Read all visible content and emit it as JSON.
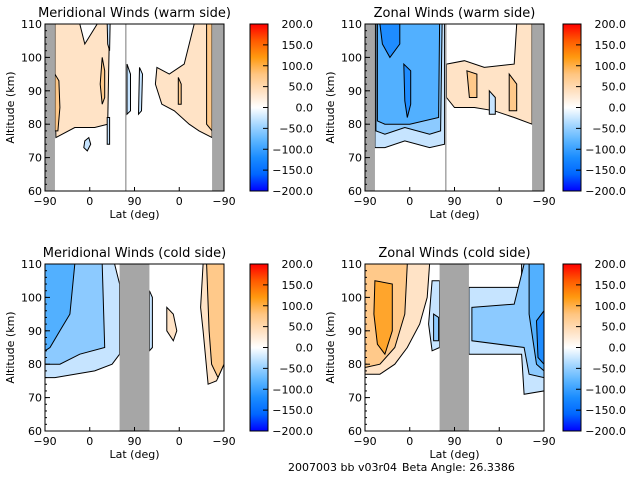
{
  "footer": {
    "run_id": "2007003 bb v03r04",
    "beta_label": "Beta Angle: 26.3386"
  },
  "colorbar": {
    "range": [
      -200,
      200
    ],
    "tick_values": [
      200,
      150,
      100,
      50,
      0,
      -50,
      -100,
      -150,
      -200
    ],
    "tick_labels": [
      "200.0",
      "150.0",
      "100.0",
      "50.0",
      "0.0",
      "-50.0",
      "-100.0",
      "-150.0",
      "-200.0"
    ],
    "colors": [
      "#0000ff",
      "#0066ff",
      "#1a8cff",
      "#5ab4ff",
      "#a8d8ff",
      "#ffffff",
      "#ffe0c0",
      "#ffc580",
      "#ff9a10",
      "#ff5a00",
      "#ff0000"
    ]
  },
  "chart_data": [
    {
      "id": "meridional-warm",
      "type": "heatmap",
      "title": "Meridional Winds (warm side)",
      "xlabel": "Lat (deg)",
      "ylabel": "Altitude (km)",
      "x_tick_labels": [
        "-90",
        "0",
        "90",
        "0",
        "-90"
      ],
      "y_tick_labels": [
        "60",
        "70",
        "80",
        "90",
        "100",
        "110"
      ],
      "ylim": [
        60,
        110
      ],
      "x_domain": [
        0,
        360
      ],
      "no_data_bands": [
        [
          0,
          20
        ],
        [
          161,
          164
        ],
        [
          336,
          360
        ]
      ],
      "regions": [
        {
          "level": 25,
          "pts": [
            [
              20,
              110
            ],
            [
              70,
              110
            ],
            [
              80,
              104
            ],
            [
              105,
              110
            ],
            [
              130,
              110
            ],
            [
              128,
              95
            ],
            [
              126,
              80
            ],
            [
              100,
              79
            ],
            [
              60,
              79
            ],
            [
              22,
              76
            ],
            [
              20,
              90
            ]
          ]
        },
        {
          "level": 60,
          "pts": [
            [
              20,
              95
            ],
            [
              28,
              93
            ],
            [
              30,
              85
            ],
            [
              26,
              78
            ],
            [
              20,
              78
            ]
          ]
        },
        {
          "level": 60,
          "pts": [
            [
              115,
              100
            ],
            [
              120,
              96
            ],
            [
              120,
              88
            ],
            [
              115,
              86
            ],
            [
              111,
              92
            ]
          ]
        },
        {
          "level": -25,
          "pts": [
            [
              125,
              110
            ],
            [
              131,
              110
            ],
            [
              130,
              102
            ],
            [
              126,
              104
            ]
          ]
        },
        {
          "level": -25,
          "pts": [
            [
              80,
              75
            ],
            [
              88,
              76
            ],
            [
              92,
              74
            ],
            [
              85,
              72
            ],
            [
              78,
              73
            ]
          ]
        },
        {
          "level": -25,
          "pts": [
            [
              125,
              82
            ],
            [
              130,
              82
            ],
            [
              130,
              74
            ],
            [
              125,
              74
            ]
          ]
        },
        {
          "level": -25,
          "pts": [
            [
              165,
              98
            ],
            [
              172,
              95
            ],
            [
              172,
              84
            ],
            [
              165,
              83
            ]
          ]
        },
        {
          "level": -25,
          "pts": [
            [
              190,
              97
            ],
            [
              196,
              95
            ],
            [
              194,
              84
            ],
            [
              188,
              83
            ]
          ]
        },
        {
          "level": 25,
          "pts": [
            [
              225,
              97
            ],
            [
              250,
              95
            ],
            [
              280,
              98
            ],
            [
              300,
              110
            ],
            [
              336,
              110
            ],
            [
              336,
              76
            ],
            [
              310,
              78
            ],
            [
              290,
              80
            ],
            [
              260,
              84
            ],
            [
              235,
              86
            ],
            [
              222,
              92
            ]
          ]
        },
        {
          "level": 60,
          "pts": [
            [
              268,
              94
            ],
            [
              274,
              92
            ],
            [
              274,
              86
            ],
            [
              268,
              86
            ]
          ]
        },
        {
          "level": 60,
          "pts": [
            [
              325,
              110
            ],
            [
              336,
              110
            ],
            [
              336,
              78
            ],
            [
              325,
              80
            ]
          ]
        }
      ]
    },
    {
      "id": "zonal-warm",
      "type": "heatmap",
      "title": "Zonal Winds (warm side)",
      "xlabel": "Lat (deg)",
      "ylabel": "Altitude (km)",
      "x_tick_labels": [
        "-90",
        "0",
        "90",
        "0",
        "-90"
      ],
      "y_tick_labels": [
        "60",
        "70",
        "80",
        "90",
        "100",
        "110"
      ],
      "ylim": [
        60,
        110
      ],
      "x_domain": [
        0,
        360
      ],
      "no_data_bands": [
        [
          0,
          20
        ],
        [
          161,
          164
        ],
        [
          336,
          360
        ]
      ],
      "regions": [
        {
          "level": -25,
          "pts": [
            [
              20,
              110
            ],
            [
              160,
              110
            ],
            [
              160,
              74
            ],
            [
              130,
              73
            ],
            [
              80,
              75
            ],
            [
              40,
              73
            ],
            [
              20,
              73
            ]
          ]
        },
        {
          "level": -60,
          "pts": [
            [
              22,
              110
            ],
            [
              155,
              110
            ],
            [
              152,
              78
            ],
            [
              130,
              77
            ],
            [
              80,
              79
            ],
            [
              40,
              77
            ],
            [
              22,
              78
            ]
          ]
        },
        {
          "level": -85,
          "pts": [
            [
              25,
              110
            ],
            [
              150,
              110
            ],
            [
              148,
              82
            ],
            [
              90,
              80
            ],
            [
              40,
              80
            ],
            [
              25,
              81
            ]
          ]
        },
        {
          "level": -110,
          "pts": [
            [
              30,
              110
            ],
            [
              70,
              110
            ],
            [
              70,
              104
            ],
            [
              50,
              100
            ],
            [
              35,
              104
            ]
          ]
        },
        {
          "level": -110,
          "pts": [
            [
              78,
              98
            ],
            [
              92,
              96
            ],
            [
              92,
              86
            ],
            [
              85,
              82
            ],
            [
              80,
              87
            ]
          ]
        },
        {
          "level": 25,
          "pts": [
            [
              164,
              98
            ],
            [
              200,
              99
            ],
            [
              240,
              97
            ],
            [
              300,
              98
            ],
            [
              305,
              110
            ],
            [
              336,
              110
            ],
            [
              336,
              80
            ],
            [
              300,
              82
            ],
            [
              260,
              84
            ],
            [
              220,
              85
            ],
            [
              180,
              85
            ],
            [
              164,
              88
            ]
          ]
        },
        {
          "level": 60,
          "pts": [
            [
              205,
              96
            ],
            [
              225,
              95
            ],
            [
              225,
              88
            ],
            [
              210,
              88
            ]
          ]
        },
        {
          "level": 60,
          "pts": [
            [
              290,
              95
            ],
            [
              305,
              92
            ],
            [
              305,
              84
            ],
            [
              290,
              84
            ]
          ]
        },
        {
          "level": -25,
          "pts": [
            [
              250,
              90
            ],
            [
              262,
              88
            ],
            [
              262,
              83
            ],
            [
              250,
              83
            ]
          ]
        }
      ]
    },
    {
      "id": "meridional-cold",
      "type": "heatmap",
      "title": "Meridional Winds (cold side)",
      "xlabel": "Lat (deg)",
      "ylabel": "Altitude (km)",
      "x_tick_labels": [
        "-90",
        "0",
        "90",
        "0",
        "-90"
      ],
      "y_tick_labels": [
        "60",
        "70",
        "80",
        "90",
        "100",
        "110"
      ],
      "ylim": [
        60,
        110
      ],
      "x_domain": [
        0,
        360
      ],
      "no_data_bands": [
        [
          150,
          210
        ]
      ],
      "regions": [
        {
          "level": -25,
          "pts": [
            [
              0,
              110
            ],
            [
              140,
              110
            ],
            [
              150,
              104
            ],
            [
              150,
              83
            ],
            [
              135,
              80
            ],
            [
              100,
              78
            ],
            [
              60,
              77
            ],
            [
              20,
              76
            ],
            [
              0,
              76
            ]
          ]
        },
        {
          "level": -60,
          "pts": [
            [
              0,
              110
            ],
            [
              115,
              110
            ],
            [
              118,
              95
            ],
            [
              120,
              85
            ],
            [
              70,
              83
            ],
            [
              30,
              80
            ],
            [
              0,
              80
            ]
          ]
        },
        {
          "level": -85,
          "pts": [
            [
              0,
              110
            ],
            [
              60,
              110
            ],
            [
              50,
              95
            ],
            [
              30,
              90
            ],
            [
              10,
              85
            ],
            [
              0,
              84
            ]
          ]
        },
        {
          "level": -25,
          "pts": [
            [
              210,
              102
            ],
            [
              216,
              100
            ],
            [
              216,
              85
            ],
            [
              210,
              84
            ]
          ]
        },
        {
          "level": 25,
          "pts": [
            [
              245,
              97
            ],
            [
              258,
              95
            ],
            [
              265,
              90
            ],
            [
              258,
              87
            ],
            [
              245,
              90
            ]
          ]
        },
        {
          "level": 25,
          "pts": [
            [
              318,
              110
            ],
            [
              360,
              110
            ],
            [
              360,
              80
            ],
            [
              345,
              75
            ],
            [
              328,
              74
            ],
            [
              318,
              90
            ],
            [
              313,
              97
            ]
          ]
        },
        {
          "level": 60,
          "pts": [
            [
              325,
              110
            ],
            [
              360,
              110
            ],
            [
              360,
              80
            ],
            [
              348,
              76
            ],
            [
              335,
              80
            ],
            [
              330,
              90
            ]
          ]
        }
      ]
    },
    {
      "id": "zonal-cold",
      "type": "heatmap",
      "title": "Zonal Winds (cold side)",
      "xlabel": "Lat (deg)",
      "ylabel": "Altitude (km)",
      "x_tick_labels": [
        "-90",
        "0",
        "90",
        "0",
        "-90"
      ],
      "y_tick_labels": [
        "60",
        "70",
        "80",
        "90",
        "100",
        "110"
      ],
      "ylim": [
        60,
        110
      ],
      "x_domain": [
        0,
        360
      ],
      "no_data_bands": [
        [
          150,
          209
        ]
      ],
      "regions": [
        {
          "level": 25,
          "pts": [
            [
              0,
              110
            ],
            [
              130,
              110
            ],
            [
              125,
              100
            ],
            [
              110,
              92
            ],
            [
              85,
              85
            ],
            [
              60,
              80
            ],
            [
              30,
              77
            ],
            [
              0,
              77
            ]
          ]
        },
        {
          "level": 60,
          "pts": [
            [
              0,
              110
            ],
            [
              85,
              110
            ],
            [
              80,
              95
            ],
            [
              60,
              85
            ],
            [
              30,
              80
            ],
            [
              0,
              79
            ]
          ]
        },
        {
          "level": 90,
          "pts": [
            [
              20,
              105
            ],
            [
              55,
              104
            ],
            [
              55,
              90
            ],
            [
              40,
              83
            ],
            [
              25,
              86
            ],
            [
              18,
              95
            ]
          ]
        },
        {
          "level": -25,
          "pts": [
            [
              135,
              105
            ],
            [
              150,
              105
            ],
            [
              150,
              85
            ],
            [
              135,
              84
            ],
            [
              128,
              92
            ]
          ]
        },
        {
          "level": -60,
          "pts": [
            [
              138,
              95
            ],
            [
              148,
              94
            ],
            [
              148,
              87
            ],
            [
              138,
              87
            ]
          ]
        },
        {
          "level": -25,
          "pts": [
            [
              209,
              103
            ],
            [
              315,
              103
            ],
            [
              315,
              110
            ],
            [
              360,
              110
            ],
            [
              360,
              72
            ],
            [
              320,
              71
            ],
            [
              315,
              83
            ],
            [
              209,
              83
            ]
          ]
        },
        {
          "level": -60,
          "pts": [
            [
              215,
              97
            ],
            [
              300,
              98
            ],
            [
              320,
              110
            ],
            [
              360,
              110
            ],
            [
              360,
              76
            ],
            [
              330,
              77
            ],
            [
              320,
              85
            ],
            [
              215,
              87
            ]
          ]
        },
        {
          "level": -85,
          "pts": [
            [
              330,
              110
            ],
            [
              360,
              110
            ],
            [
              360,
              78
            ],
            [
              345,
              80
            ],
            [
              330,
              95
            ]
          ]
        },
        {
          "level": -110,
          "pts": [
            [
              345,
              93
            ],
            [
              360,
              96
            ],
            [
              360,
              80
            ],
            [
              348,
              82
            ]
          ]
        }
      ]
    }
  ]
}
